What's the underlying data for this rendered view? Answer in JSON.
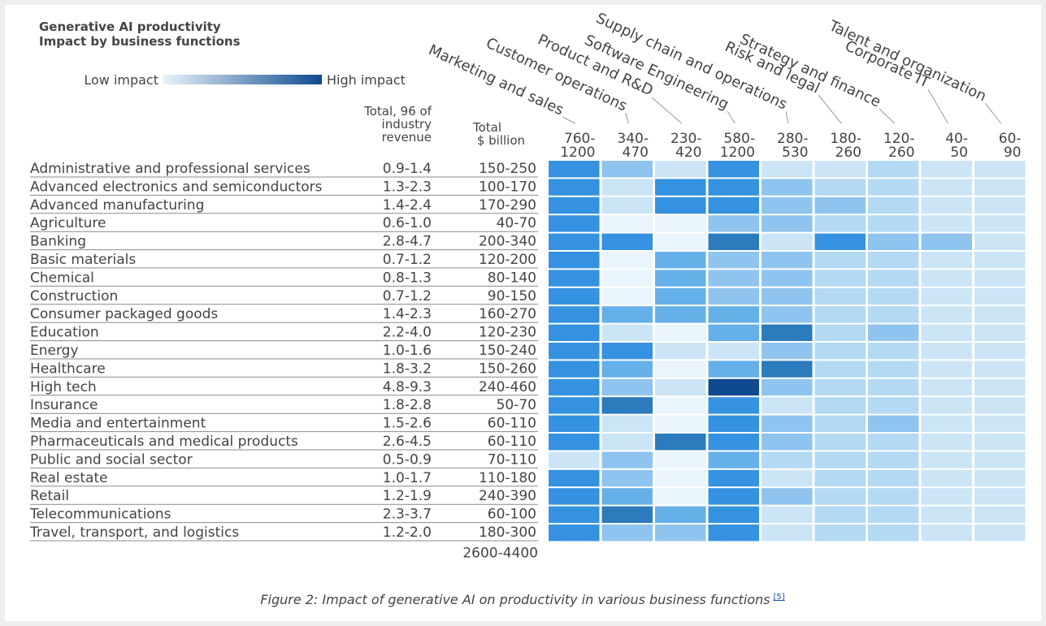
{
  "header": {
    "title": [
      "Generative AI productivity",
      "Impact by business functions"
    ],
    "legend": {
      "low": "Low impact",
      "high": "High impact",
      "colors": [
        "#e9f4fb",
        "#0f4a8f"
      ]
    }
  },
  "table": {
    "col_headers": {
      "pct": [
        "Total, 96 of",
        "industry",
        "revenue"
      ],
      "usd": [
        "Total",
        "$ billion"
      ]
    },
    "columns": [
      {
        "name": "Marketing and sales",
        "range": [
          "760-",
          "1200"
        ]
      },
      {
        "name": "Customer operations",
        "range": [
          "340-",
          "470"
        ]
      },
      {
        "name": "Product and R&D",
        "range": [
          "230-",
          "420"
        ]
      },
      {
        "name": "Software Engineering",
        "range": [
          "580-",
          "1200"
        ]
      },
      {
        "name": "Supply chain and operations",
        "range": [
          "280-",
          "530"
        ]
      },
      {
        "name": "Risk and legal",
        "range": [
          "180-",
          "260"
        ]
      },
      {
        "name": "Strategy and finance",
        "range": [
          "120-",
          "260"
        ]
      },
      {
        "name": "Corporate IT",
        "range": [
          "40-",
          "50"
        ]
      },
      {
        "name": "Talent and organization",
        "range": [
          "60-",
          "90"
        ]
      }
    ],
    "palette": {
      "L0": "#e9f4fb",
      "L1": "#cbe5f6",
      "L2": "#b4d9f3",
      "L3": "#8fc4ee",
      "L4": "#66b0ea",
      "L5": "#3592e0",
      "L6": "#2b7bbd",
      "L7": "#0f4a8f"
    },
    "rows": [
      {
        "name": "Administrative and professional services",
        "pct": "0.9-1.4",
        "usd": "150-250",
        "cells": [
          "L5",
          "L3",
          "L1",
          "L5",
          "L1",
          "L1",
          "L2",
          "L1",
          "L1"
        ]
      },
      {
        "name": "Advanced electronics and semiconductors",
        "pct": "1.3-2.3",
        "usd": "100-170",
        "cells": [
          "L5",
          "L1",
          "L5",
          "L5",
          "L3",
          "L2",
          "L2",
          "L1",
          "L1"
        ]
      },
      {
        "name": "Advanced manufacturing",
        "pct": "1.4-2.4",
        "usd": "170-290",
        "cells": [
          "L5",
          "L1",
          "L5",
          "L5",
          "L3",
          "L3",
          "L2",
          "L1",
          "L1"
        ]
      },
      {
        "name": "Agriculture",
        "pct": "0.6-1.0",
        "usd": "40-70",
        "cells": [
          "L5",
          "L0",
          "L0",
          "L3",
          "L3",
          "L2",
          "L2",
          "L1",
          "L1"
        ]
      },
      {
        "name": "Banking",
        "pct": "2.8-4.7",
        "usd": "200-340",
        "cells": [
          "L5",
          "L5",
          "L0",
          "L6",
          "L1",
          "L5",
          "L3",
          "L3",
          "L1"
        ]
      },
      {
        "name": "Basic materials",
        "pct": "0.7-1.2",
        "usd": "120-200",
        "cells": [
          "L5",
          "L0",
          "L4",
          "L3",
          "L3",
          "L2",
          "L2",
          "L1",
          "L1"
        ]
      },
      {
        "name": "Chemical",
        "pct": "0.8-1.3",
        "usd": "80-140",
        "cells": [
          "L5",
          "L0",
          "L4",
          "L3",
          "L3",
          "L2",
          "L2",
          "L1",
          "L1"
        ]
      },
      {
        "name": "Construction",
        "pct": "0.7-1.2",
        "usd": "90-150",
        "cells": [
          "L5",
          "L0",
          "L4",
          "L3",
          "L3",
          "L2",
          "L2",
          "L1",
          "L1"
        ]
      },
      {
        "name": "Consumer packaged goods",
        "pct": "1.4-2.3",
        "usd": "160-270",
        "cells": [
          "L5",
          "L4",
          "L4",
          "L4",
          "L3",
          "L2",
          "L2",
          "L1",
          "L1"
        ]
      },
      {
        "name": "Education",
        "pct": "2.2-4.0",
        "usd": "120-230",
        "cells": [
          "L5",
          "L1",
          "L0",
          "L4",
          "L6",
          "L2",
          "L3",
          "L1",
          "L1"
        ]
      },
      {
        "name": "Energy",
        "pct": "1.0-1.6",
        "usd": "150-240",
        "cells": [
          "L5",
          "L5",
          "L1",
          "L1",
          "L3",
          "L2",
          "L2",
          "L1",
          "L1"
        ]
      },
      {
        "name": "Healthcare",
        "pct": "1.8-3.2",
        "usd": "150-260",
        "cells": [
          "L5",
          "L4",
          "L0",
          "L4",
          "L6",
          "L2",
          "L2",
          "L1",
          "L1"
        ]
      },
      {
        "name": "High tech",
        "pct": "4.8-9.3",
        "usd": "240-460",
        "cells": [
          "L5",
          "L3",
          "L1",
          "L7",
          "L3",
          "L2",
          "L2",
          "L1",
          "L1"
        ]
      },
      {
        "name": "Insurance",
        "pct": "1.8-2.8",
        "usd": "50-70",
        "cells": [
          "L5",
          "L6",
          "L0",
          "L5",
          "L1",
          "L2",
          "L2",
          "L1",
          "L1"
        ]
      },
      {
        "name": "Media and entertainment",
        "pct": "1.5-2.6",
        "usd": "60-110",
        "cells": [
          "L5",
          "L1",
          "L0",
          "L5",
          "L3",
          "L2",
          "L3",
          "L1",
          "L1"
        ]
      },
      {
        "name": "Pharmaceuticals and medical products",
        "pct": "2.6-4.5",
        "usd": "60-110",
        "cells": [
          "L5",
          "L1",
          "L6",
          "L5",
          "L3",
          "L2",
          "L2",
          "L1",
          "L1"
        ]
      },
      {
        "name": "Public and social sector",
        "pct": "0.5-0.9",
        "usd": "70-110",
        "cells": [
          "L1",
          "L3",
          "L0",
          "L4",
          "L2",
          "L2",
          "L2",
          "L1",
          "L1"
        ]
      },
      {
        "name": "Real estate",
        "pct": "1.0-1.7",
        "usd": "110-180",
        "cells": [
          "L5",
          "L3",
          "L0",
          "L5",
          "L1",
          "L2",
          "L2",
          "L1",
          "L1"
        ]
      },
      {
        "name": "Retail",
        "pct": "1.2-1.9",
        "usd": "240-390",
        "cells": [
          "L5",
          "L4",
          "L0",
          "L5",
          "L3",
          "L2",
          "L2",
          "L1",
          "L1"
        ]
      },
      {
        "name": "Telecommunications",
        "pct": "2.3-3.7",
        "usd": "60-100",
        "cells": [
          "L5",
          "L6",
          "L4",
          "L5",
          "L1",
          "L2",
          "L2",
          "L1",
          "L1"
        ]
      },
      {
        "name": "Travel, transport, and logistics",
        "pct": "1.2-2.0",
        "usd": "180-300",
        "cells": [
          "L5",
          "L3",
          "L3",
          "L5",
          "L1",
          "L2",
          "L2",
          "L1",
          "L1"
        ]
      }
    ],
    "total_usd": "2600-4400"
  },
  "caption": {
    "text": "Figure 2: Impact of generative AI on productivity in various business functions",
    "ref": "[5]"
  }
}
